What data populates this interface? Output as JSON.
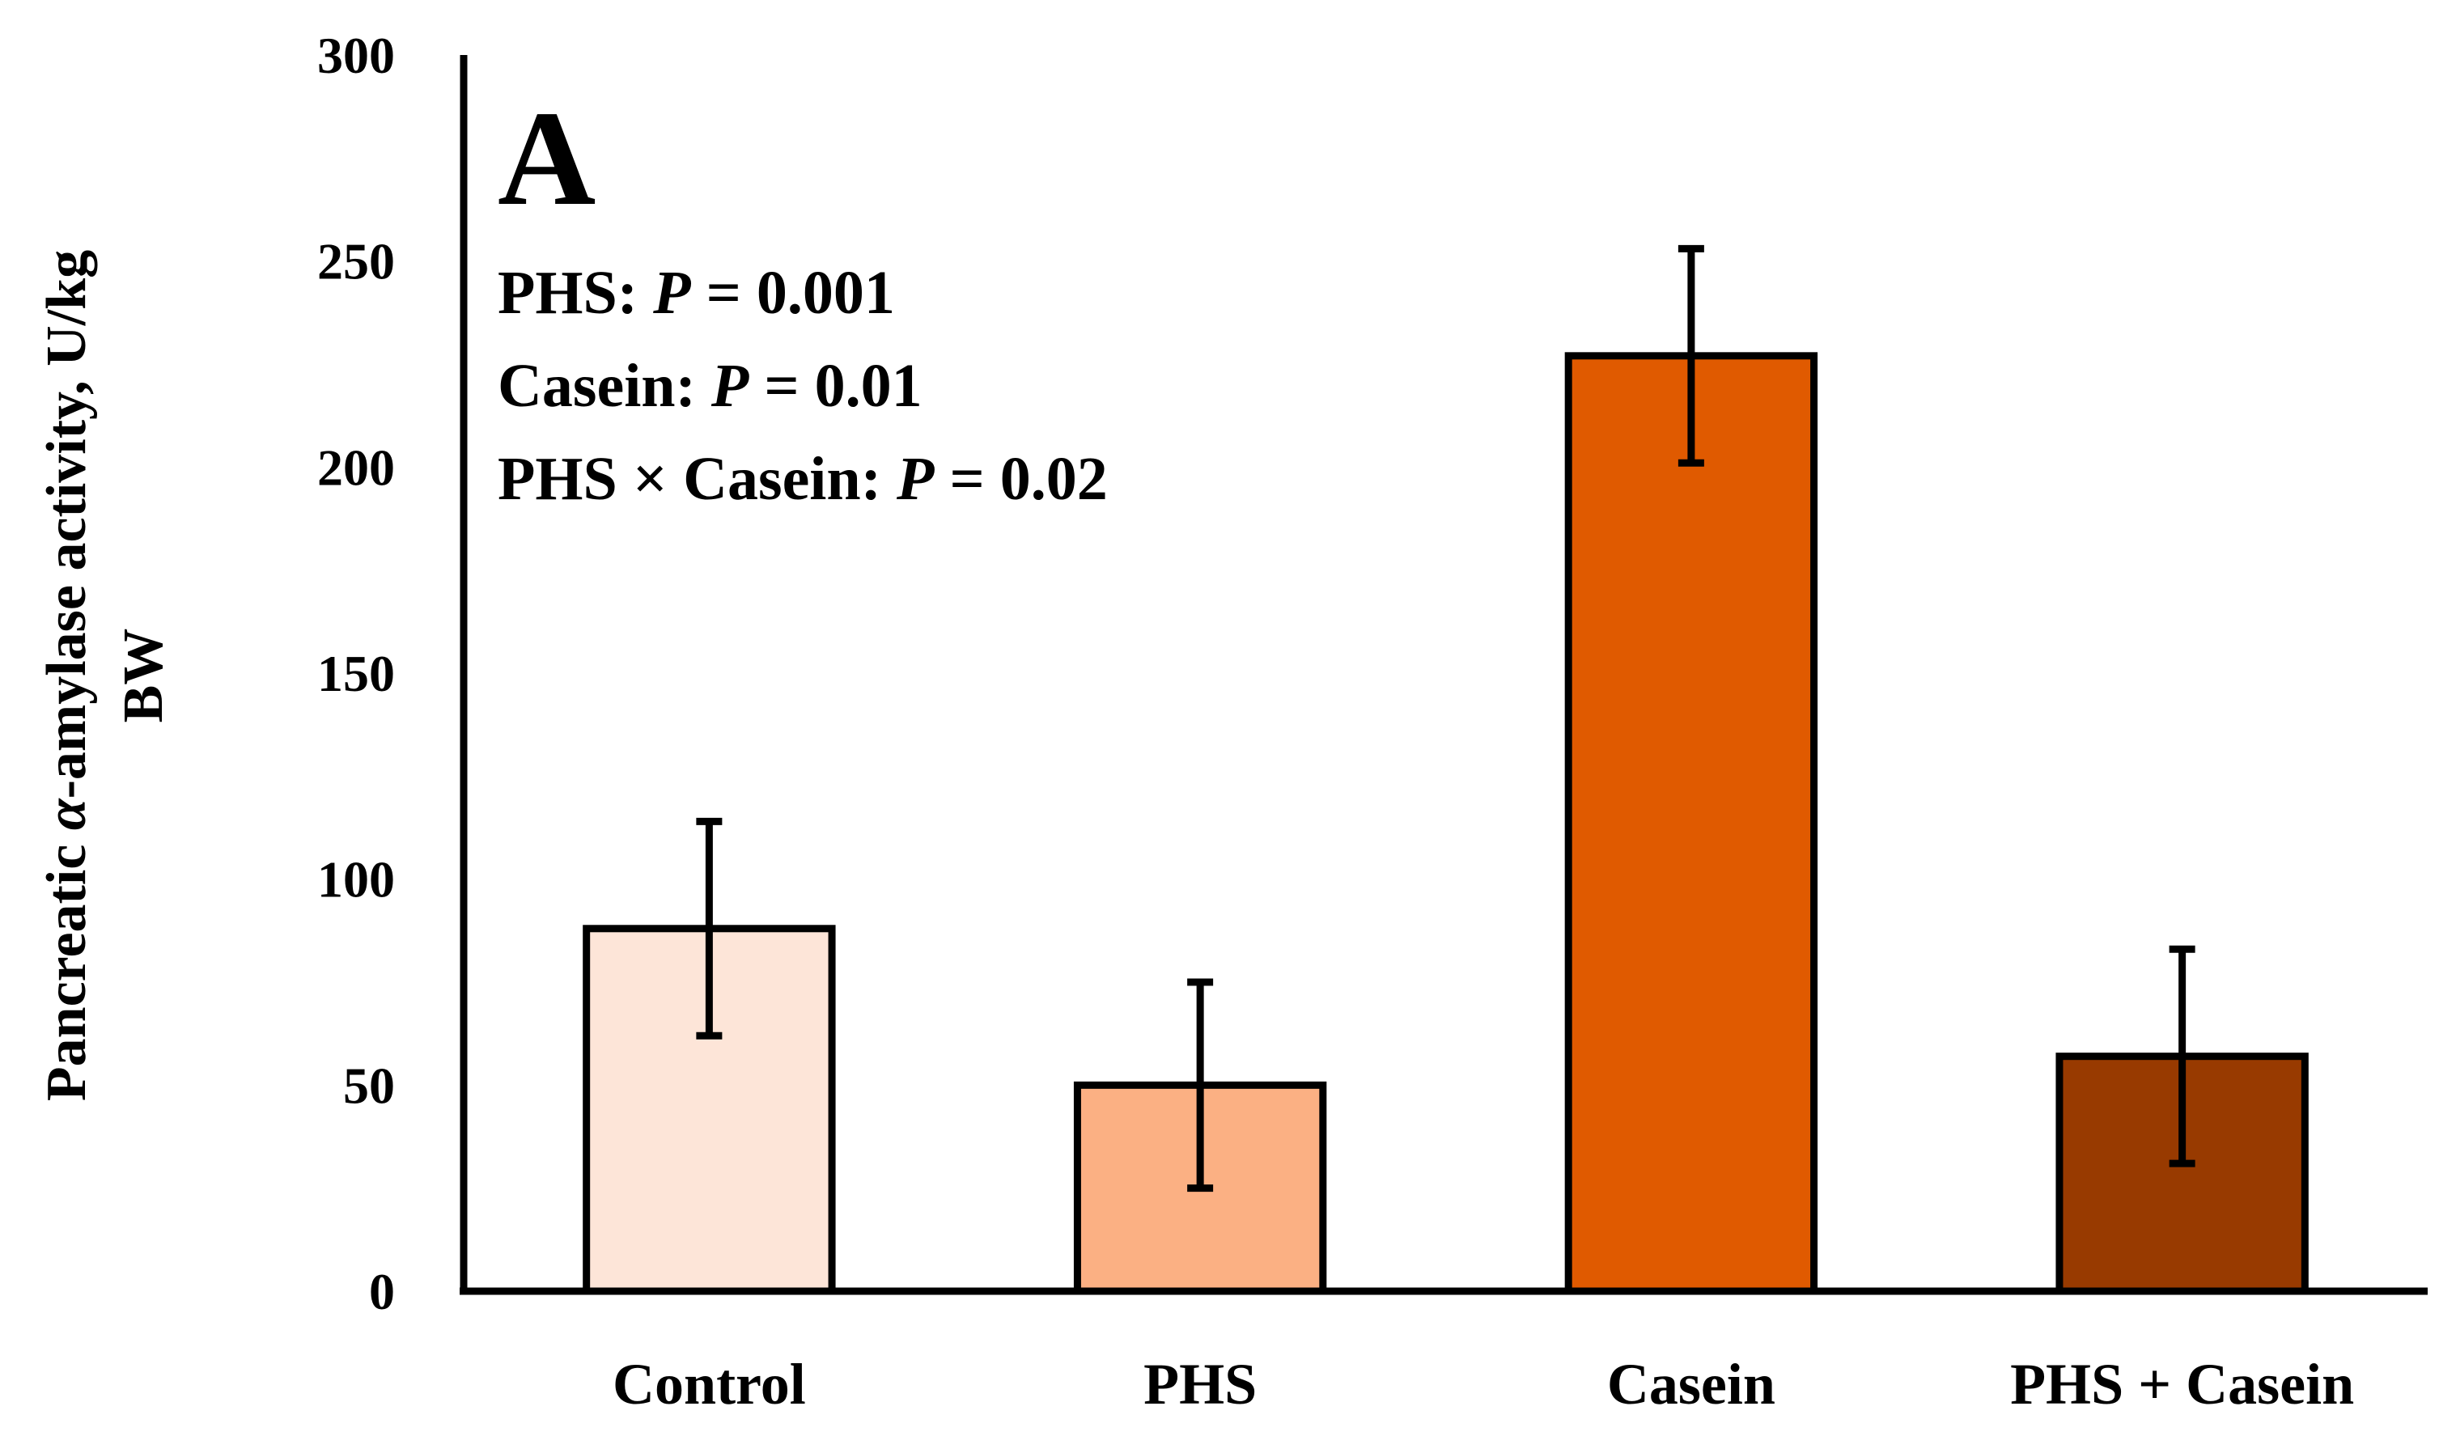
{
  "chart_data": {
    "type": "bar",
    "title": "",
    "panel_label": "A",
    "categories": [
      "Control",
      "PHS",
      "Casein",
      "PHS + Casein"
    ],
    "values": [
      88,
      50,
      227,
      57
    ],
    "errors": [
      26,
      25,
      26,
      26
    ],
    "colors": [
      "#FDE5D8",
      "#FBB083",
      "#E05A00",
      "#983A00"
    ],
    "xlabel": "",
    "ylabel": {
      "part1": "Pancreatic ",
      "alpha": "α",
      "part2": "-amylase activity, U/kg",
      "line2": "BW"
    },
    "ylim": [
      0,
      300
    ],
    "yticks": [
      0,
      50,
      100,
      150,
      200,
      250,
      300
    ],
    "grid": false,
    "legend": "none",
    "annotations": [
      {
        "prefix": "PHS: ",
        "p": "P",
        "rest": " = 0.001"
      },
      {
        "prefix": "Casein: ",
        "p": "P",
        "rest": " = 0.01"
      },
      {
        "prefix": "PHS × Casein: ",
        "p": "P",
        "rest": " = 0.02"
      }
    ]
  }
}
